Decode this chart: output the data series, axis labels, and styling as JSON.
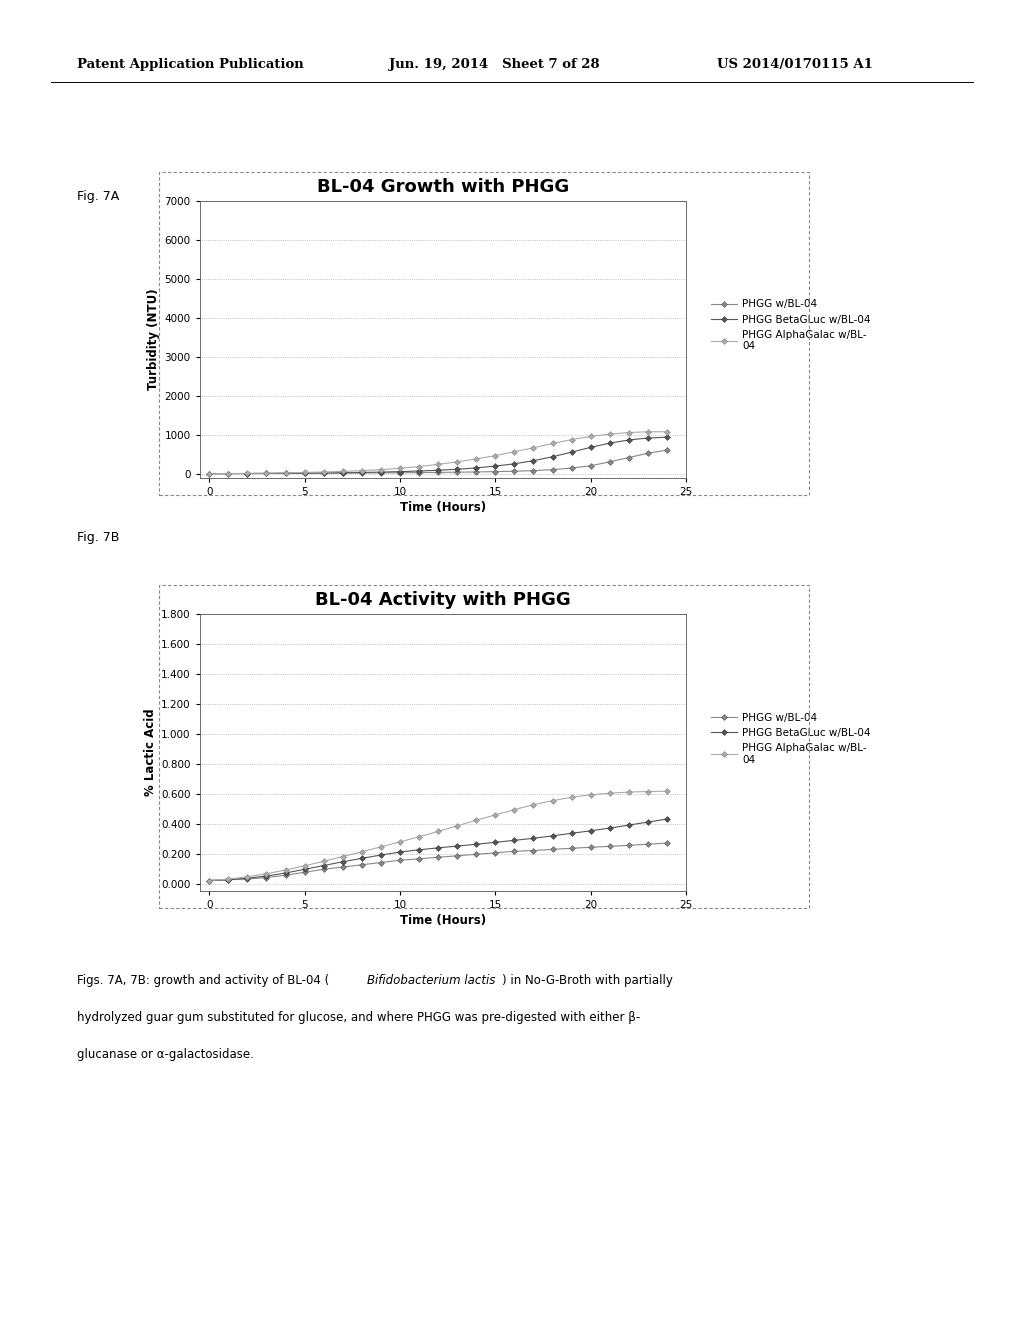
{
  "fig7a_title": "BL-04 Growth with PHGG",
  "fig7b_title": "BL-04 Activity with PHGG",
  "fig7a_ylabel": "Turbidity (NTU)",
  "fig7b_ylabel": "% Lactic Acid",
  "xlabel": "Time (Hours)",
  "fig7a_yticks": [
    0,
    1000,
    2000,
    3000,
    4000,
    5000,
    6000,
    7000
  ],
  "fig7a_ylim": [
    -100,
    7000
  ],
  "fig7b_yticks": [
    0.0,
    0.2,
    0.4,
    0.6,
    0.8,
    1.0,
    1.2,
    1.4,
    1.6,
    1.8
  ],
  "fig7b_ylim": [
    -0.05,
    1.8
  ],
  "xticks": [
    0,
    5,
    10,
    15,
    20,
    25
  ],
  "xlim": [
    -0.5,
    25
  ],
  "time_points": [
    0,
    1,
    2,
    3,
    4,
    5,
    6,
    7,
    8,
    9,
    10,
    11,
    12,
    13,
    14,
    15,
    16,
    17,
    18,
    19,
    20,
    21,
    22,
    23,
    24
  ],
  "fig7a_line1": [
    5,
    8,
    10,
    12,
    15,
    18,
    20,
    22,
    25,
    28,
    30,
    35,
    40,
    45,
    50,
    60,
    70,
    85,
    110,
    150,
    210,
    310,
    420,
    530,
    610
  ],
  "fig7a_line2": [
    5,
    8,
    10,
    12,
    15,
    20,
    25,
    30,
    38,
    48,
    60,
    75,
    95,
    120,
    155,
    200,
    260,
    340,
    440,
    560,
    680,
    790,
    870,
    920,
    940
  ],
  "fig7a_line3": [
    5,
    10,
    15,
    20,
    28,
    38,
    50,
    65,
    85,
    110,
    145,
    190,
    245,
    310,
    385,
    470,
    570,
    670,
    780,
    880,
    960,
    1020,
    1060,
    1080,
    1080
  ],
  "fig7b_line1": [
    0.02,
    0.025,
    0.03,
    0.04,
    0.055,
    0.075,
    0.095,
    0.11,
    0.125,
    0.14,
    0.155,
    0.165,
    0.175,
    0.185,
    0.195,
    0.205,
    0.215,
    0.22,
    0.228,
    0.235,
    0.242,
    0.248,
    0.255,
    0.262,
    0.27
  ],
  "fig7b_line2": [
    0.02,
    0.025,
    0.035,
    0.05,
    0.07,
    0.095,
    0.12,
    0.145,
    0.168,
    0.19,
    0.21,
    0.225,
    0.238,
    0.25,
    0.262,
    0.275,
    0.288,
    0.302,
    0.318,
    0.335,
    0.352,
    0.37,
    0.39,
    0.41,
    0.43
  ],
  "fig7b_line3": [
    0.02,
    0.03,
    0.045,
    0.065,
    0.09,
    0.118,
    0.148,
    0.18,
    0.212,
    0.245,
    0.278,
    0.312,
    0.348,
    0.385,
    0.422,
    0.458,
    0.493,
    0.526,
    0.553,
    0.575,
    0.592,
    0.603,
    0.61,
    0.614,
    0.616
  ],
  "legend_labels_7a": [
    "PHGG w/BL-04",
    "PHGG BetaGLuc w/BL-04",
    "PHGG AlphaGalac w/BL-\n04"
  ],
  "legend_labels_7b": [
    "PHGG w/BL-04",
    "PHGG BetaGLuc w/BL-04",
    "PHGG AlphaGalac w/BL-\n04"
  ],
  "bg_color": "#ffffff",
  "panel_bg": "#ffffff",
  "header_left": "Patent Application Publication",
  "header_mid": "Jun. 19, 2014   Sheet 7 of 28",
  "header_right": "US 2014/0170115 A1",
  "fig_label_7a": "Fig. 7A",
  "fig_label_7b": "Fig. 7B"
}
